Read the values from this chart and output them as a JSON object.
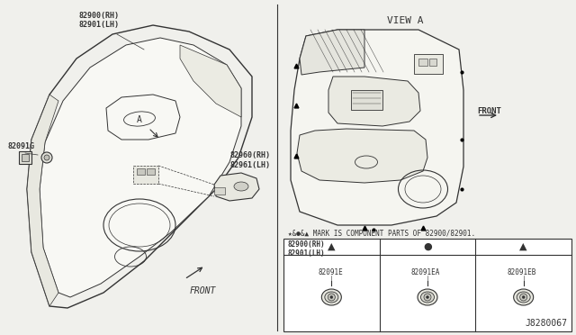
{
  "bg_color": "#f0f0ec",
  "title_view_a": "VIEW A",
  "labels": {
    "main_door_top": "82900(RH)\n82901(LH)",
    "main_door_switch": "82960(RH)\n82961(LH)",
    "main_clip": "82091G",
    "view_door": "82900(RH)\n82901(LH)"
  },
  "component_note": "★&●&▲ MARK IS COMPONENT PARTS OF 82900/82901.",
  "table_items": [
    {
      "symbol": "▲",
      "code": "82091E"
    },
    {
      "symbol": "●",
      "code": "82091EA"
    },
    {
      "symbol": "▲",
      "code": "82091EB"
    }
  ],
  "diagram_id": "J8280067",
  "line_color": "#333333",
  "text_color": "#333333"
}
